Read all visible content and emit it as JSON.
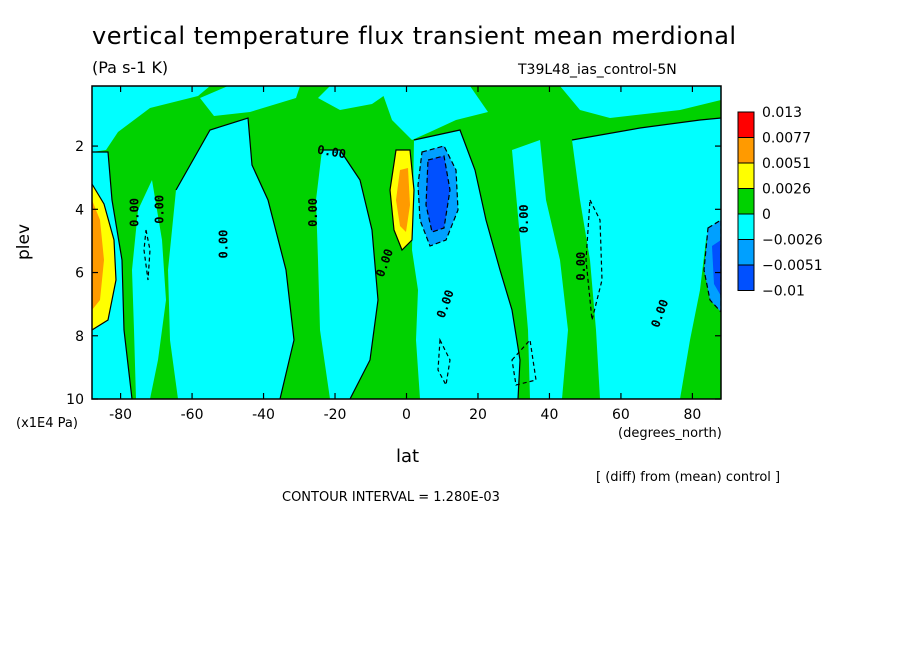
{
  "chart_data": {
    "type": "heatmap",
    "title": "vertical temperature flux transient mean merdional",
    "units": "(Pa s-1 K)",
    "run_label": "T39L48_ias_control-5N",
    "xlabel": "lat",
    "x_unit": "(degrees_north)",
    "ylabel": "plev",
    "y_unit": "(x1E4 Pa)",
    "x_ticks": [
      "-80",
      "-60",
      "-40",
      "-20",
      "0",
      "20",
      "40",
      "60",
      "80"
    ],
    "x_tick_values": [
      -80,
      -60,
      -40,
      -20,
      0,
      20,
      40,
      60,
      80
    ],
    "y_ticks": [
      "2",
      "4",
      "6",
      "8",
      "10"
    ],
    "y_tick_values": [
      2,
      4,
      6,
      8,
      10
    ],
    "xlim": [
      -88,
      88
    ],
    "ylim": [
      10,
      0.1
    ],
    "colorbar": {
      "labels": [
        "0.013",
        "0.0077",
        "0.0051",
        "0.0026",
        "0",
        "−0.0026",
        "−0.0051",
        "−0.01"
      ],
      "colors": [
        "#ff0000",
        "#ff9a00",
        "#ffff00",
        "#00d200",
        "#00ffff",
        "#00a0ff",
        "#0050ff"
      ]
    },
    "contour_labels": [
      {
        "text": "0.00",
        "lat": -76,
        "plev": 4.1,
        "rot": -90
      },
      {
        "text": "0.00",
        "lat": -69,
        "plev": 4.0,
        "rot": -90
      },
      {
        "text": "0.00",
        "lat": -51,
        "plev": 5.1,
        "rot": -90
      },
      {
        "text": "0.00",
        "lat": -26,
        "plev": 4.1,
        "rot": -90
      },
      {
        "text": "0.00",
        "lat": -21,
        "plev": 2.2,
        "rot": 10
      },
      {
        "text": "0.00",
        "lat": -6,
        "plev": 5.7,
        "rot": -70
      },
      {
        "text": "0.00",
        "lat": 11,
        "plev": 7.0,
        "rot": -70
      },
      {
        "text": "0.00",
        "lat": 33,
        "plev": 4.3,
        "rot": -90
      },
      {
        "text": "0.00",
        "lat": 49,
        "plev": 5.8,
        "rot": -90
      },
      {
        "text": "0.00",
        "lat": 71,
        "plev": 7.3,
        "rot": -70
      }
    ],
    "annotation": "[ (diff) from (mean) control ]",
    "contour_interval": "CONTOUR INTERVAL = 1.280E-03",
    "grid": false,
    "legend_position": "right"
  }
}
